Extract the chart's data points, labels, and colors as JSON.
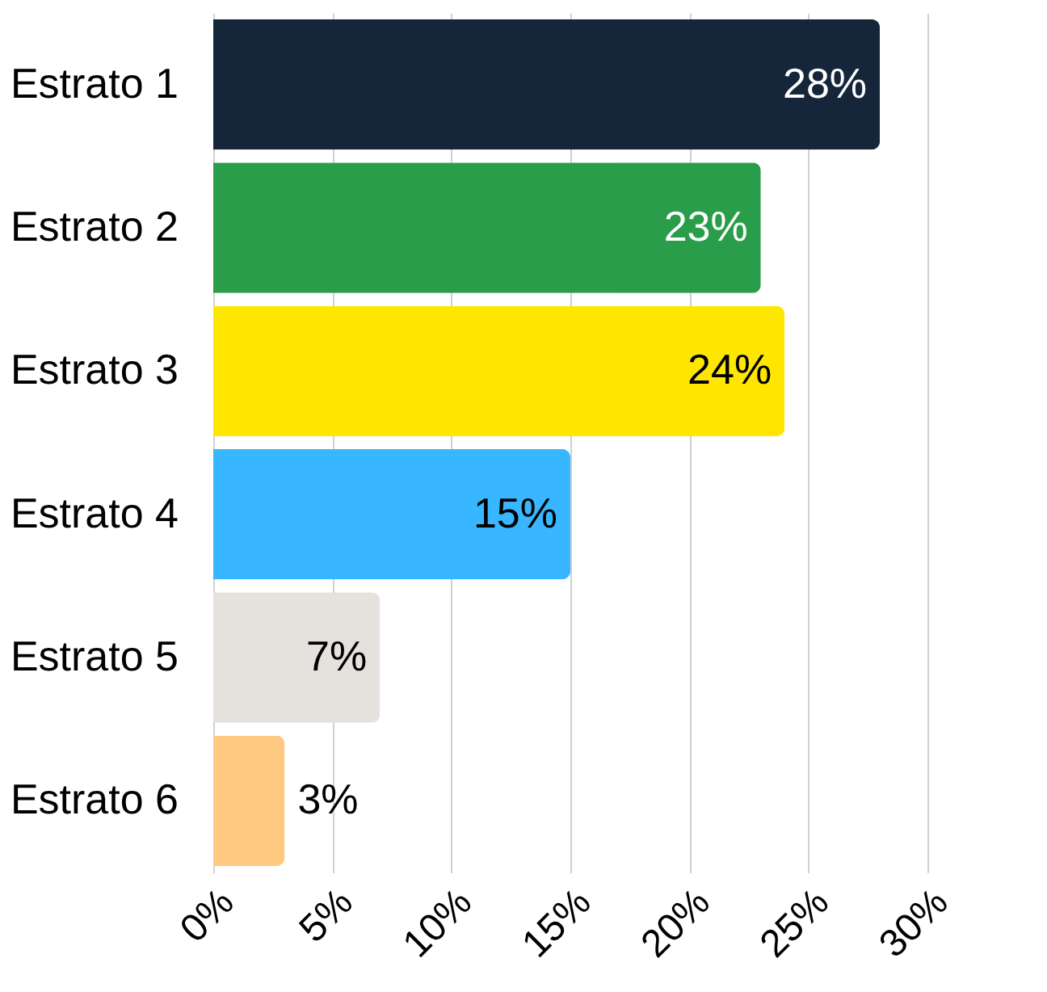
{
  "chart_data": {
    "type": "bar",
    "orientation": "horizontal",
    "categories": [
      "Estrato 1",
      "Estrato 2",
      "Estrato 3",
      "Estrato 4",
      "Estrato 5",
      "Estrato 6"
    ],
    "values": [
      28,
      23,
      24,
      15,
      7,
      3
    ],
    "colors": [
      "#15253a",
      "#2a9d4a",
      "#ffe600",
      "#38b6ff",
      "#e5e1dc",
      "#ffc982"
    ],
    "value_labels": [
      "28%",
      "23%",
      "24%",
      "15%",
      "7%",
      "3%"
    ],
    "xlim": [
      0,
      30
    ],
    "xticks": [
      {
        "value": 0,
        "label": "0%"
      },
      {
        "value": 5,
        "label": "5%"
      },
      {
        "value": 10,
        "label": "10%"
      },
      {
        "value": 15,
        "label": "15%"
      },
      {
        "value": 20,
        "label": "20%"
      },
      {
        "value": 25,
        "label": "25%"
      },
      {
        "value": 30,
        "label": "30%"
      }
    ],
    "grid": "x"
  }
}
